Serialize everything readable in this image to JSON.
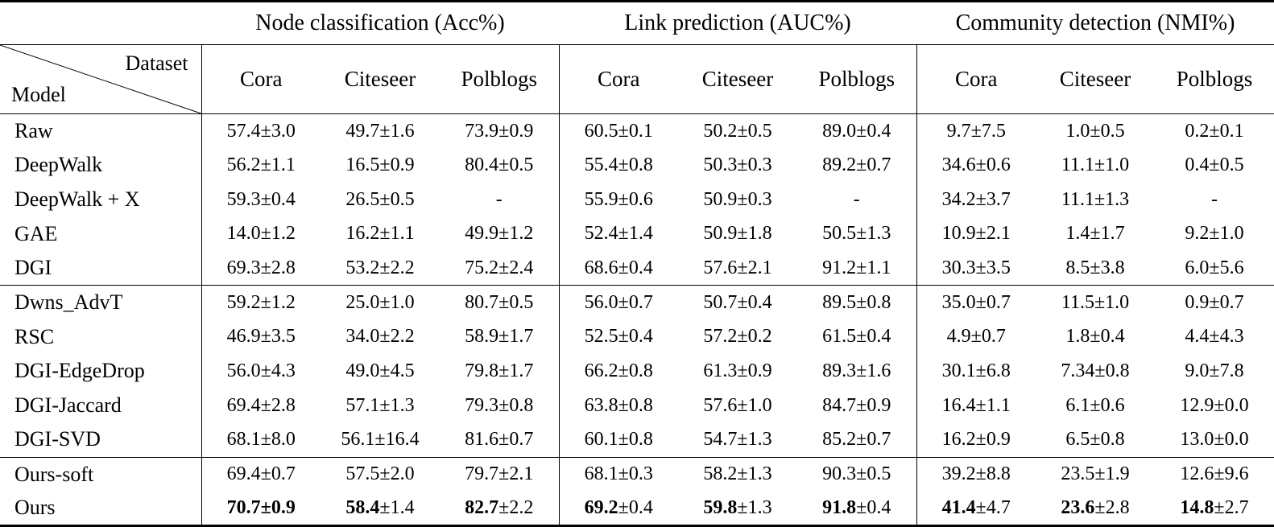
{
  "table": {
    "groups": [
      {
        "label": "Node classification (Acc%)"
      },
      {
        "label": "Link prediction (AUC%)"
      },
      {
        "label": "Community detection (NMI%)"
      }
    ],
    "diagonal": {
      "top": "Dataset",
      "bottom": "Model"
    },
    "datasets": [
      "Cora",
      "Citeseer",
      "Polblogs"
    ],
    "sections": [
      {
        "rows": [
          {
            "model": "Raw",
            "cells": [
              "57.4±3.0",
              "49.7±1.6",
              "73.9±0.9",
              "60.5±0.1",
              "50.2±0.5",
              "89.0±0.4",
              "9.7±7.5",
              "1.0±0.5",
              "0.2±0.1"
            ]
          },
          {
            "model": "DeepWalk",
            "cells": [
              "56.2±1.1",
              "16.5±0.9",
              "80.4±0.5",
              "55.4±0.8",
              "50.3±0.3",
              "89.2±0.7",
              "34.6±0.6",
              "11.1±1.0",
              "0.4±0.5"
            ]
          },
          {
            "model": "DeepWalk + X",
            "cells": [
              "59.3±0.4",
              "26.5±0.5",
              "-",
              "55.9±0.6",
              "50.9±0.3",
              "-",
              "34.2±3.7",
              "11.1±1.3",
              "-"
            ]
          },
          {
            "model": "GAE",
            "cells": [
              "14.0±1.2",
              "16.2±1.1",
              "49.9±1.2",
              "52.4±1.4",
              "50.9±1.8",
              "50.5±1.3",
              "10.9±2.1",
              "1.4±1.7",
              "9.2±1.0"
            ]
          },
          {
            "model": "DGI",
            "cells": [
              "69.3±2.8",
              "53.2±2.2",
              "75.2±2.4",
              "68.6±0.4",
              "57.6±2.1",
              "91.2±1.1",
              "30.3±3.5",
              "8.5±3.8",
              "6.0±5.6"
            ]
          }
        ]
      },
      {
        "rows": [
          {
            "model": "Dwns_AdvT",
            "cells": [
              "59.2±1.2",
              "25.0±1.0",
              "80.7±0.5",
              "56.0±0.7",
              "50.7±0.4",
              "89.5±0.8",
              "35.0±0.7",
              "11.5±1.0",
              "0.9±0.7"
            ]
          },
          {
            "model": "RSC",
            "cells": [
              "46.9±3.5",
              "34.0±2.2",
              "58.9±1.7",
              "52.5±0.4",
              "57.2±0.2",
              "61.5±0.4",
              "4.9±0.7",
              "1.8±0.4",
              "4.4±4.3"
            ]
          },
          {
            "model": "DGI-EdgeDrop",
            "cells": [
              "56.0±4.3",
              "49.0±4.5",
              "79.8±1.7",
              "66.2±0.8",
              "61.3±0.9",
              "89.3±1.6",
              "30.1±6.8",
              "7.34±0.8",
              "9.0±7.8"
            ]
          },
          {
            "model": "DGI-Jaccard",
            "cells": [
              "69.4±2.8",
              "57.1±1.3",
              "79.3±0.8",
              "63.8±0.8",
              "57.6±1.0",
              "84.7±0.9",
              "16.4±1.1",
              "6.1±0.6",
              "12.9±0.0"
            ]
          },
          {
            "model": "DGI-SVD",
            "cells": [
              "68.1±8.0",
              "56.1±16.4",
              "81.6±0.7",
              "60.1±0.8",
              "54.7±1.3",
              "85.2±0.7",
              "16.2±0.9",
              "6.5±0.8",
              "13.0±0.0"
            ]
          }
        ]
      },
      {
        "rows": [
          {
            "model": "Ours-soft",
            "cells": [
              "69.4±0.7",
              "57.5±2.0",
              "79.7±2.1",
              "68.1±0.3",
              "58.2±1.3",
              "90.3±0.5",
              "39.2±8.8",
              "23.5±1.9",
              "12.6±9.6"
            ]
          },
          {
            "model": "Ours",
            "cells": [
              {
                "text": "70.7±0.9",
                "bold_prefix": "70.7±0.9"
              },
              {
                "text": "58.4±1.4",
                "bold_prefix": "58.4"
              },
              {
                "text": "82.7±2.2",
                "bold_prefix": "82.7"
              },
              {
                "text": "69.2±0.4",
                "bold_prefix": "69.2"
              },
              {
                "text": "59.8±1.3",
                "bold_prefix": "59.8"
              },
              {
                "text": "91.8±0.4",
                "bold_prefix": "91.8"
              },
              {
                "text": "41.4±4.7",
                "bold_prefix": "41.4"
              },
              {
                "text": "23.6±2.8",
                "bold_prefix": "23.6"
              },
              {
                "text": "14.8±2.7",
                "bold_prefix": "14.8"
              }
            ]
          }
        ]
      }
    ]
  }
}
